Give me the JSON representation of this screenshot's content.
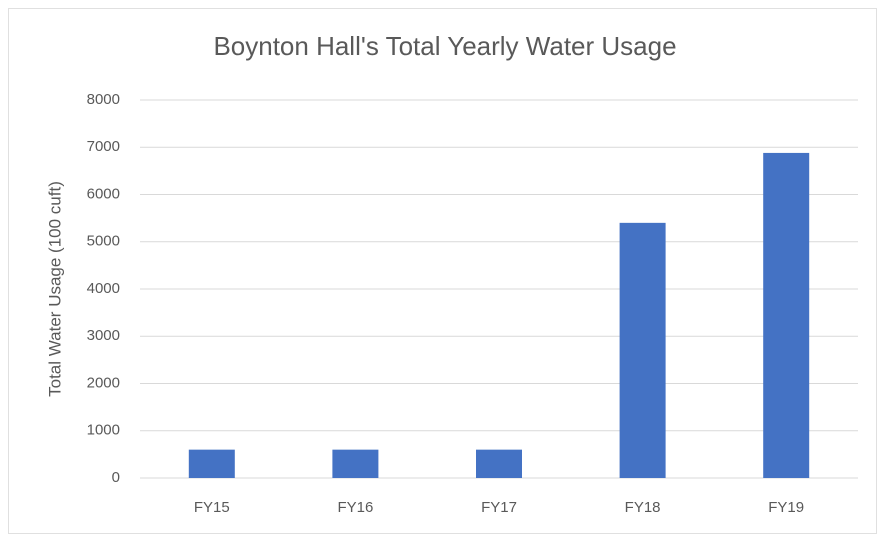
{
  "chart_data": {
    "type": "bar",
    "title": "Boynton Hall's Total Yearly Water Usage",
    "y_label": "Total Water Usage (100 cuft)",
    "categories": [
      "FY15",
      "FY16",
      "FY17",
      "FY18",
      "FY19"
    ],
    "values": [
      600,
      600,
      600,
      5400,
      6880
    ],
    "color": "#4472c4",
    "ylim": [
      0,
      8000
    ],
    "yticks": [
      0,
      1000,
      2000,
      3000,
      4000,
      5000,
      6000,
      7000,
      8000
    ],
    "grid": true
  }
}
